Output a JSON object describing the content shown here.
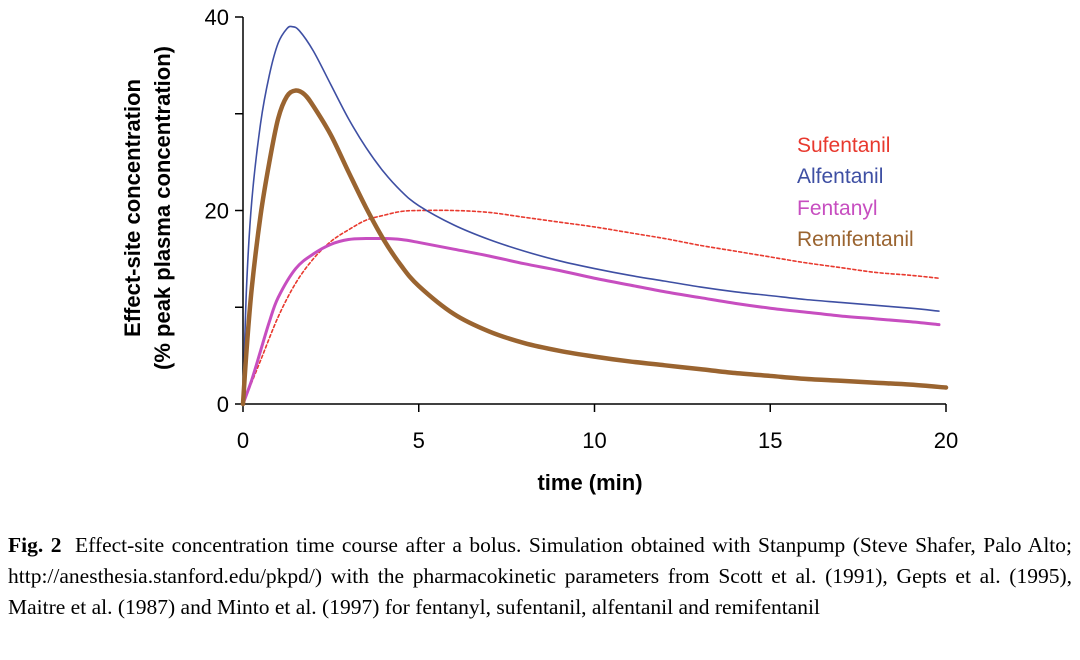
{
  "chart_data": {
    "type": "line",
    "xlabel": "time (min)",
    "ylabel_line1": "Effect-site concentration",
    "ylabel_line2": "(% peak plasma concentration)",
    "xlim": [
      0,
      20
    ],
    "ylim": [
      0,
      40
    ],
    "x_ticks": [
      0,
      5,
      10,
      15,
      20
    ],
    "y_ticks": [
      0,
      20,
      40
    ],
    "grid": false,
    "legend_position": "right",
    "series": [
      {
        "name": "Sufentanil",
        "color": "#e8392e",
        "style": "dashed",
        "points": [
          [
            0,
            0
          ],
          [
            0.5,
            4.5
          ],
          [
            1,
            9
          ],
          [
            1.5,
            12.5
          ],
          [
            2,
            15
          ],
          [
            2.5,
            16.8
          ],
          [
            3,
            18
          ],
          [
            3.5,
            19
          ],
          [
            4,
            19.5
          ],
          [
            4.5,
            19.9
          ],
          [
            5,
            20
          ],
          [
            6,
            20
          ],
          [
            7,
            19.8
          ],
          [
            8,
            19.3
          ],
          [
            9,
            18.8
          ],
          [
            10,
            18.3
          ],
          [
            11,
            17.7
          ],
          [
            12,
            17.1
          ],
          [
            13,
            16.4
          ],
          [
            14,
            15.8
          ],
          [
            15,
            15.2
          ],
          [
            16,
            14.6
          ],
          [
            17,
            14.1
          ],
          [
            18,
            13.6
          ],
          [
            19,
            13.3
          ],
          [
            19.8,
            13
          ]
        ]
      },
      {
        "name": "Alfentanil",
        "color": "#3e4fa3",
        "style": "solid",
        "points": [
          [
            0,
            0
          ],
          [
            0.1,
            12
          ],
          [
            0.25,
            21
          ],
          [
            0.5,
            29
          ],
          [
            0.75,
            34
          ],
          [
            1,
            37.3
          ],
          [
            1.25,
            38.8
          ],
          [
            1.4,
            39
          ],
          [
            1.6,
            38.6
          ],
          [
            2,
            36.5
          ],
          [
            2.5,
            33
          ],
          [
            3,
            29.5
          ],
          [
            3.5,
            26.5
          ],
          [
            4,
            24
          ],
          [
            4.5,
            22
          ],
          [
            5,
            20.5
          ],
          [
            6,
            18.5
          ],
          [
            7,
            17
          ],
          [
            8,
            15.8
          ],
          [
            9,
            14.8
          ],
          [
            10,
            14
          ],
          [
            11,
            13.3
          ],
          [
            12,
            12.7
          ],
          [
            13,
            12.1
          ],
          [
            14,
            11.6
          ],
          [
            15,
            11.2
          ],
          [
            16,
            10.8
          ],
          [
            17,
            10.5
          ],
          [
            18,
            10.2
          ],
          [
            19,
            9.9
          ],
          [
            19.8,
            9.6
          ]
        ]
      },
      {
        "name": "Fentanyl",
        "color": "#c74ec0",
        "style": "solid",
        "points": [
          [
            0,
            0
          ],
          [
            0.25,
            2.5
          ],
          [
            0.5,
            5.5
          ],
          [
            0.75,
            8.5
          ],
          [
            1,
            11
          ],
          [
            1.5,
            14
          ],
          [
            2,
            15.5
          ],
          [
            2.5,
            16.5
          ],
          [
            3,
            17
          ],
          [
            3.5,
            17.1
          ],
          [
            4,
            17.1
          ],
          [
            4.5,
            17
          ],
          [
            5,
            16.7
          ],
          [
            6,
            16
          ],
          [
            7,
            15.3
          ],
          [
            8,
            14.5
          ],
          [
            9,
            13.8
          ],
          [
            10,
            13
          ],
          [
            11,
            12.3
          ],
          [
            12,
            11.6
          ],
          [
            13,
            11
          ],
          [
            14,
            10.4
          ],
          [
            15,
            9.9
          ],
          [
            16,
            9.5
          ],
          [
            17,
            9.1
          ],
          [
            18,
            8.8
          ],
          [
            19,
            8.5
          ],
          [
            19.8,
            8.2
          ]
        ]
      },
      {
        "name": "Remifentanil",
        "color": "#9a6430",
        "style": "solid",
        "points": [
          [
            0,
            0
          ],
          [
            0.1,
            5.5
          ],
          [
            0.25,
            12
          ],
          [
            0.5,
            19.5
          ],
          [
            0.75,
            25
          ],
          [
            1,
            29.5
          ],
          [
            1.25,
            31.8
          ],
          [
            1.5,
            32.4
          ],
          [
            1.75,
            32
          ],
          [
            2,
            30.8
          ],
          [
            2.5,
            27.8
          ],
          [
            3,
            24
          ],
          [
            3.5,
            20.3
          ],
          [
            4,
            17
          ],
          [
            4.5,
            14.3
          ],
          [
            5,
            12.2
          ],
          [
            6,
            9.3
          ],
          [
            7,
            7.5
          ],
          [
            8,
            6.3
          ],
          [
            9,
            5.5
          ],
          [
            10,
            4.9
          ],
          [
            11,
            4.4
          ],
          [
            12,
            4
          ],
          [
            13,
            3.6
          ],
          [
            14,
            3.2
          ],
          [
            15,
            2.9
          ],
          [
            16,
            2.6
          ],
          [
            17,
            2.4
          ],
          [
            18,
            2.2
          ],
          [
            19,
            2
          ],
          [
            20,
            1.7
          ]
        ]
      }
    ]
  },
  "caption": {
    "label": "Fig. 2",
    "text": "Effect-site concentration time course after a bolus. Simulation obtained with Stanpump (Steve Shafer, Palo Alto; http://anesthesia.stanford.edu/pkpd/) with the pharmacokinetic parameters from Scott et al. (1991), Gepts et al. (1995), Maitre et al. (1987) and Minto et al. (1997) for fentanyl, sufentanil, alfentanil and remifentanil"
  }
}
